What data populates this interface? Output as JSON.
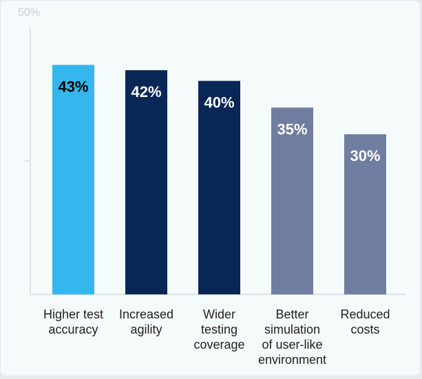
{
  "chart_data": {
    "type": "bar",
    "categories": [
      "Higher test accuracy",
      "Increased agility",
      "Wider testing coverage",
      "Better simulation of user-like environment",
      "Reduced costs"
    ],
    "category_lines": [
      [
        "Higher test",
        "accuracy"
      ],
      [
        "Increased",
        "agility"
      ],
      [
        "Wider",
        "testing",
        "coverage"
      ],
      [
        "Better",
        "simulation",
        "of user-like",
        "environment"
      ],
      [
        "Reduced",
        "costs"
      ]
    ],
    "values": [
      43,
      42,
      40,
      35,
      30
    ],
    "data_labels": [
      "43%",
      "42%",
      "40%",
      "35%",
      "30%"
    ],
    "bar_colors": [
      "#35b6ec",
      "#082757",
      "#082757",
      "#6f7da0",
      "#6f7da0"
    ],
    "label_colors": [
      "#000000",
      "#ffffff",
      "#ffffff",
      "#ffffff",
      "#ffffff"
    ],
    "ylim": [
      0,
      50
    ],
    "y_tick_labels": [
      "50%"
    ],
    "grid": false,
    "title": "",
    "xlabel": "",
    "ylabel": ""
  }
}
